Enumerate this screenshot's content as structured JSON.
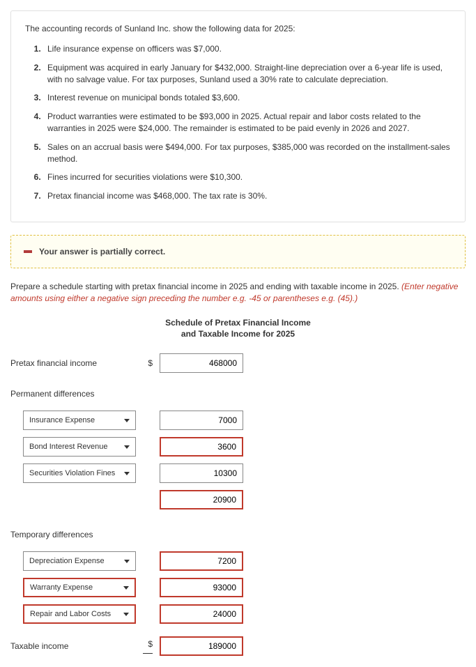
{
  "panel": {
    "intro": "The accounting records of Sunland Inc. show the following data for 2025:",
    "items": [
      "Life insurance expense on officers was $7,000.",
      "Equipment was acquired in early January for $432,000. Straight-line depreciation over a 6-year life is used, with no salvage value. For tax purposes, Sunland used a 30% rate to calculate depreciation.",
      "Interest revenue on municipal bonds totaled $3,600.",
      "Product warranties were estimated to be $93,000 in 2025. Actual repair and labor costs related to the warranties in 2025 were $24,000. The remainder is estimated to be paid evenly in 2026 and 2027.",
      "Sales on an accrual basis were $494,000. For tax purposes, $385,000 was recorded on the installment-sales method.",
      "Fines incurred for securities violations were $10,300.",
      "Pretax financial income was $468,000. The tax rate is 30%."
    ]
  },
  "feedback": "Your answer is partially correct.",
  "instructions": "Prepare a schedule starting with pretax financial income in 2025 and ending with taxable income in 2025.",
  "hint": "(Enter negative amounts using either a negative sign preceding the number e.g. -45 or parentheses e.g. (45).)",
  "schedule": {
    "title_line1": "Schedule of Pretax Financial Income",
    "title_line2": "and Taxable Income for 2025",
    "rows": [
      {
        "label": "Pretax financial income",
        "type": "plain",
        "dollar": true,
        "value": "468000",
        "wrong_value": false
      },
      {
        "label": "Permanent differences",
        "type": "plain-header"
      },
      {
        "label": "Insurance Expense",
        "type": "select",
        "wrong_label": false,
        "value": "7000",
        "wrong_value": false
      },
      {
        "label": "Bond Interest Revenue",
        "type": "select",
        "wrong_label": false,
        "value": "3600",
        "wrong_value": true
      },
      {
        "label": "Securities Violation Fines",
        "type": "select",
        "wrong_label": false,
        "value": "10300",
        "wrong_value": false
      },
      {
        "label": "",
        "type": "subtotal",
        "value": "20900",
        "wrong_value": true
      },
      {
        "label": "Temporary differences",
        "type": "plain-header"
      },
      {
        "label": "Depreciation Expense",
        "type": "select",
        "wrong_label": false,
        "value": "7200",
        "wrong_value": true
      },
      {
        "label": "Warranty Expense",
        "type": "select",
        "wrong_label": true,
        "value": "93000",
        "wrong_value": true
      },
      {
        "label": "Repair and Labor Costs",
        "type": "select",
        "wrong_label": true,
        "value": "24000",
        "wrong_value": true
      },
      {
        "label": "Taxable income",
        "type": "total",
        "dollar": true,
        "value": "189000",
        "wrong_value": true
      }
    ]
  },
  "colors": {
    "error": "#c0392b",
    "panel_border": "#e0e0e0",
    "feedback_border": "#e0c040",
    "feedback_bg": "#fffef2"
  }
}
